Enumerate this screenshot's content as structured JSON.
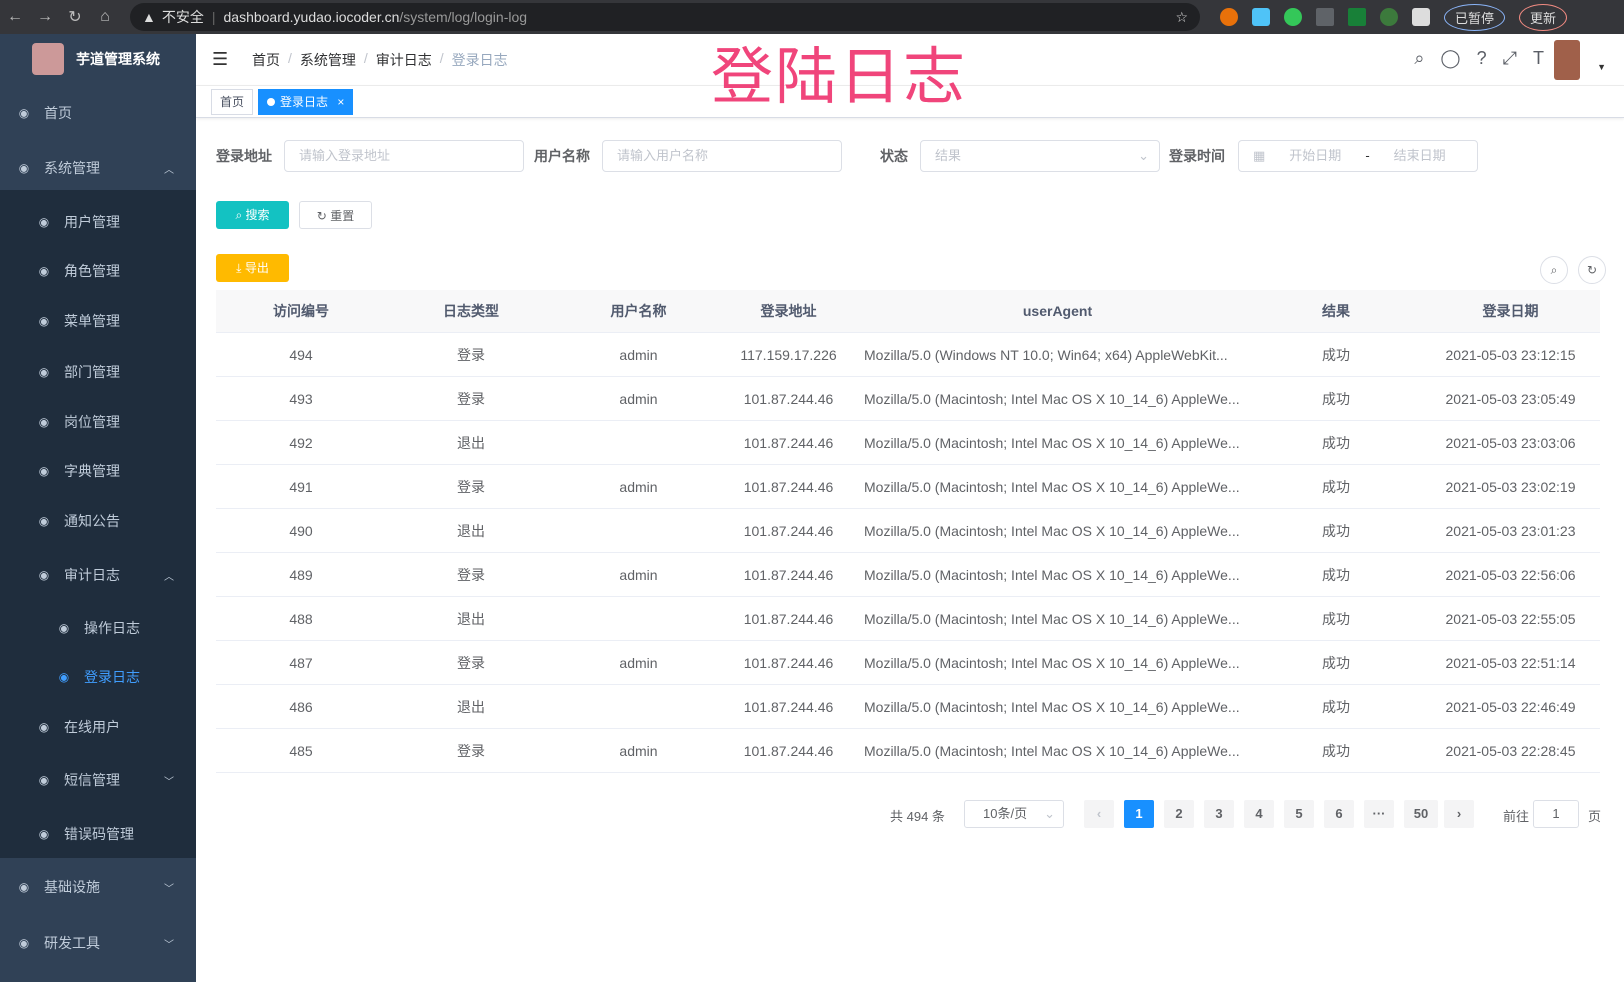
{
  "browser": {
    "security": "不安全",
    "url_host": "dashboard.yudao.iocoder.cn",
    "url_path": "/system/log/login-log",
    "profile": "已暂停",
    "update": "更新"
  },
  "app": {
    "title": "芋道管理系统"
  },
  "sidebar": {
    "items": [
      {
        "label": "首页",
        "icon": "dashboard-icon"
      },
      {
        "label": "系统管理",
        "icon": "gear-icon",
        "expanded": true
      },
      {
        "label": "用户管理",
        "icon": "user-icon"
      },
      {
        "label": "角色管理",
        "icon": "peoples-icon"
      },
      {
        "label": "菜单管理",
        "icon": "tree-table-icon"
      },
      {
        "label": "部门管理",
        "icon": "tree-icon"
      },
      {
        "label": "岗位管理",
        "icon": "post-icon"
      },
      {
        "label": "字典管理",
        "icon": "dict-icon"
      },
      {
        "label": "通知公告",
        "icon": "message-icon"
      },
      {
        "label": "审计日志",
        "icon": "log-icon",
        "expanded": true
      },
      {
        "label": "操作日志",
        "icon": "form-icon"
      },
      {
        "label": "登录日志",
        "icon": "logininfor-icon",
        "active": true
      },
      {
        "label": "在线用户",
        "icon": "online-icon"
      },
      {
        "label": "短信管理",
        "icon": "shield-icon"
      },
      {
        "label": "错误码管理",
        "icon": "code-icon"
      },
      {
        "label": "基础设施",
        "icon": "monitor-icon"
      },
      {
        "label": "研发工具",
        "icon": "tool-icon"
      }
    ]
  },
  "header": {
    "breadcrumb": [
      "首页",
      "系统管理",
      "审计日志",
      "登录日志"
    ],
    "stamp": "登陆日志"
  },
  "tags": {
    "home": "首页",
    "current": "登录日志",
    "close": "×"
  },
  "filters": {
    "ip_label": "登录地址",
    "ip_placeholder": "请输入登录地址",
    "user_label": "用户名称",
    "user_placeholder": "请输入用户名称",
    "status_label": "状态",
    "status_placeholder": "结果",
    "time_label": "登录时间",
    "start_placeholder": "开始日期",
    "sep": "-",
    "end_placeholder": "结束日期"
  },
  "buttons": {
    "search": "搜索",
    "reset": "重置",
    "export": "导出"
  },
  "colors": {
    "sidebar": "#304156",
    "primary": "#1890ff",
    "search": "#13c2c2",
    "export": "#ffba00",
    "stamp": "#f0457b"
  },
  "table": {
    "headers": [
      "访问编号",
      "日志类型",
      "用户名称",
      "登录地址",
      "userAgent",
      "结果",
      "登录日期"
    ],
    "rows": [
      [
        "494",
        "登录",
        "admin",
        "117.159.17.226",
        "Mozilla/5.0 (Windows NT 10.0; Win64; x64) AppleWebKit...",
        "成功",
        "2021-05-03 23:12:15"
      ],
      [
        "493",
        "登录",
        "admin",
        "101.87.244.46",
        "Mozilla/5.0 (Macintosh; Intel Mac OS X 10_14_6) AppleWe...",
        "成功",
        "2021-05-03 23:05:49"
      ],
      [
        "492",
        "退出",
        "",
        "101.87.244.46",
        "Mozilla/5.0 (Macintosh; Intel Mac OS X 10_14_6) AppleWe...",
        "成功",
        "2021-05-03 23:03:06"
      ],
      [
        "491",
        "登录",
        "admin",
        "101.87.244.46",
        "Mozilla/5.0 (Macintosh; Intel Mac OS X 10_14_6) AppleWe...",
        "成功",
        "2021-05-03 23:02:19"
      ],
      [
        "490",
        "退出",
        "",
        "101.87.244.46",
        "Mozilla/5.0 (Macintosh; Intel Mac OS X 10_14_6) AppleWe...",
        "成功",
        "2021-05-03 23:01:23"
      ],
      [
        "489",
        "登录",
        "admin",
        "101.87.244.46",
        "Mozilla/5.0 (Macintosh; Intel Mac OS X 10_14_6) AppleWe...",
        "成功",
        "2021-05-03 22:56:06"
      ],
      [
        "488",
        "退出",
        "",
        "101.87.244.46",
        "Mozilla/5.0 (Macintosh; Intel Mac OS X 10_14_6) AppleWe...",
        "成功",
        "2021-05-03 22:55:05"
      ],
      [
        "487",
        "登录",
        "admin",
        "101.87.244.46",
        "Mozilla/5.0 (Macintosh; Intel Mac OS X 10_14_6) AppleWe...",
        "成功",
        "2021-05-03 22:51:14"
      ],
      [
        "486",
        "退出",
        "",
        "101.87.244.46",
        "Mozilla/5.0 (Macintosh; Intel Mac OS X 10_14_6) AppleWe...",
        "成功",
        "2021-05-03 22:46:49"
      ],
      [
        "485",
        "登录",
        "admin",
        "101.87.244.46",
        "Mozilla/5.0 (Macintosh; Intel Mac OS X 10_14_6) AppleWe...",
        "成功",
        "2021-05-03 22:28:45"
      ]
    ]
  },
  "pagination": {
    "total": "共 494 条",
    "page_size": "10条/页",
    "pages": [
      "1",
      "2",
      "3",
      "4",
      "5",
      "6",
      "···",
      "50"
    ],
    "current": "1",
    "goto_label": "前往",
    "goto_value": "1",
    "goto_suffix": "页"
  }
}
